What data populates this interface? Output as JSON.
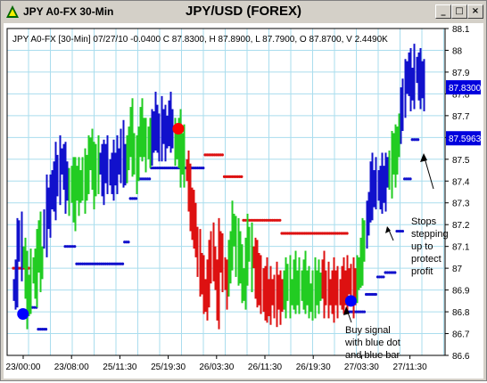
{
  "window": {
    "title": "JPY A0-FX 30-Min",
    "chart_title": "JPY/USD (FOREX)",
    "buttons": {
      "minimize": "_",
      "maximize": "□",
      "close": "×"
    }
  },
  "info_line": "JPY A0-FX [30-Min] 07/27/10  -0.0400 C 87.8300, H 87.8900, L 87.7900, O 87.8700, V 2.4490K",
  "annotations": {
    "stops": [
      "Stops",
      "stepping",
      "up to",
      "protect",
      "profit"
    ],
    "buy": [
      "Buy signal",
      "with blue dot",
      "and blue bar"
    ]
  },
  "colors": {
    "up": "#22cc22",
    "down": "#dd1111",
    "blue": "#1111cc",
    "grid": "#aaddee",
    "label_bg": "#0000dd"
  },
  "chart_data": {
    "type": "ohlc",
    "title": "JPY/USD (FOREX)",
    "ylim": [
      86.6,
      88.1
    ],
    "y_ticks": [
      "88.1",
      "88",
      "87.9",
      "87.8",
      "87.7",
      "87.6",
      "87.5",
      "87.4",
      "87.3",
      "87.2",
      "87.1",
      "87",
      "86.9",
      "86.8",
      "86.7",
      "86.6"
    ],
    "x_ticks": [
      "23/00:00",
      "23/08:00",
      "25/11:30",
      "25/19:30",
      "26/03:30",
      "26/11:30",
      "26/19:30",
      "27/03:30",
      "27/11:30"
    ],
    "price_labels": [
      "87.8300",
      "87.5963"
    ],
    "last_bar": {
      "date": "07/27/10",
      "change": -0.04,
      "close": 87.83,
      "high": 87.89,
      "low": 87.79,
      "open": 87.87,
      "volume": "2.4490K"
    },
    "bar_segments": [
      {
        "color": "blue",
        "start": 0,
        "prices": [
          86.9,
          86.95,
          87.1,
          87.15,
          87.05
        ]
      },
      {
        "color": "green",
        "start": 5,
        "prices": [
          87.05,
          86.95,
          86.85,
          86.9,
          86.98,
          87.0,
          86.95,
          87.05,
          87.15,
          87.0,
          87.05
        ]
      },
      {
        "color": "blue",
        "start": 16,
        "prices": [
          87.18,
          87.3,
          87.25,
          87.32,
          87.4,
          87.35,
          87.45,
          87.4,
          87.5,
          87.48,
          87.45,
          87.38,
          87.42
        ]
      },
      {
        "color": "green",
        "start": 29,
        "prices": [
          87.35,
          87.42,
          87.3,
          87.38,
          87.4,
          87.35,
          87.4,
          87.42,
          87.38,
          87.45,
          87.5,
          87.55,
          87.45,
          87.4,
          87.5,
          87.45
        ]
      },
      {
        "color": "blue",
        "start": 45,
        "prices": [
          87.48,
          87.42,
          87.46,
          87.5,
          87.45,
          87.43,
          87.44,
          87.46,
          87.45,
          87.5,
          87.48,
          87.55,
          87.5,
          87.45
        ]
      },
      {
        "color": "green",
        "start": 59,
        "prices": [
          87.5,
          87.6,
          87.65,
          87.55,
          87.5,
          87.45,
          87.6,
          87.65,
          87.62,
          87.58,
          87.55,
          87.6,
          87.55
        ]
      },
      {
        "color": "blue",
        "start": 72,
        "prices": [
          87.6,
          87.65,
          87.7,
          87.58,
          87.62,
          87.66,
          87.64,
          87.6,
          87.65,
          87.68,
          87.66,
          87.62
        ]
      },
      {
        "color": "green",
        "start": 84,
        "prices": [
          87.58,
          87.55,
          87.6,
          87.5,
          87.55,
          87.48
        ]
      },
      {
        "color": "red",
        "start": 90,
        "prices": [
          87.45,
          87.35,
          87.3,
          87.2,
          87.25,
          87.1,
          87.05,
          87.0,
          86.95,
          86.9,
          86.85,
          86.95,
          87.0,
          87.1,
          87.05,
          86.95,
          86.85,
          87.1,
          87.05,
          87.0,
          86.95,
          86.9
        ]
      },
      {
        "color": "green",
        "start": 112,
        "prices": [
          87.0,
          87.1,
          87.2,
          87.15,
          87.05,
          87.1,
          87.0,
          86.95,
          86.9,
          87.05,
          87.12,
          87.1,
          87.0
        ]
      },
      {
        "color": "red",
        "start": 125,
        "prices": [
          87.05,
          86.95,
          87.0,
          86.9,
          86.95,
          86.85,
          86.92,
          86.88,
          86.85,
          86.9,
          86.88,
          86.86,
          86.9,
          86.88,
          86.85,
          86.9
        ]
      },
      {
        "color": "green",
        "start": 141,
        "prices": [
          86.9,
          86.92,
          86.95,
          86.88,
          86.9,
          86.95,
          86.92,
          86.9,
          86.94,
          86.9,
          86.95,
          86.92,
          86.9,
          86.88,
          86.85,
          86.9,
          86.92,
          86.9,
          86.93,
          86.9
        ]
      },
      {
        "color": "red",
        "start": 161,
        "prices": [
          86.95,
          86.9,
          86.92,
          86.88,
          86.9,
          86.88,
          86.92,
          86.9,
          86.88,
          86.9,
          86.92,
          86.92,
          86.9,
          86.95,
          86.93,
          86.92,
          86.9,
          86.93
        ]
      },
      {
        "color": "green",
        "start": 179,
        "prices": [
          86.95,
          87.0,
          87.05,
          87.1,
          87.15
        ]
      },
      {
        "color": "blue",
        "start": 184,
        "prices": [
          87.2,
          87.3,
          87.4,
          87.35,
          87.38,
          87.4,
          87.36,
          87.38,
          87.4,
          87.37,
          87.42,
          87.46
        ]
      },
      {
        "color": "green",
        "start": 196,
        "prices": [
          87.45,
          87.5,
          87.55,
          87.48,
          87.6,
          87.62
        ]
      },
      {
        "color": "blue",
        "start": 202,
        "prices": [
          87.7,
          87.8,
          87.85,
          87.9,
          87.88,
          87.85,
          87.84,
          87.92,
          87.9,
          87.86,
          87.88,
          87.85,
          87.83
        ]
      }
    ],
    "stop_segments": [
      {
        "color": "red",
        "from": 0,
        "to": 9,
        "value": 87.0
      },
      {
        "color": "blue",
        "from": 9,
        "to": 13,
        "value": 86.82
      },
      {
        "color": "blue",
        "from": 13,
        "to": 18,
        "value": 86.72
      },
      {
        "color": "blue",
        "from": 27,
        "to": 33,
        "value": 87.1
      },
      {
        "color": "blue",
        "from": 33,
        "to": 58,
        "value": 87.02
      },
      {
        "color": "blue",
        "from": 58,
        "to": 61,
        "value": 87.12
      },
      {
        "color": "blue",
        "from": 61,
        "to": 65,
        "value": 87.32
      },
      {
        "color": "blue",
        "from": 65,
        "to": 72,
        "value": 87.41
      },
      {
        "color": "blue",
        "from": 72,
        "to": 100,
        "value": 87.46
      },
      {
        "color": "red",
        "from": 100,
        "to": 110,
        "value": 87.52
      },
      {
        "color": "red",
        "from": 110,
        "to": 120,
        "value": 87.42
      },
      {
        "color": "red",
        "from": 120,
        "to": 140,
        "value": 87.22
      },
      {
        "color": "red",
        "from": 140,
        "to": 175,
        "value": 87.16
      },
      {
        "color": "blue",
        "from": 175,
        "to": 184,
        "value": 86.8
      },
      {
        "color": "blue",
        "from": 184,
        "to": 190,
        "value": 86.88
      },
      {
        "color": "blue",
        "from": 190,
        "to": 194,
        "value": 86.96
      },
      {
        "color": "blue",
        "from": 194,
        "to": 200,
        "value": 86.98
      },
      {
        "color": "blue",
        "from": 200,
        "to": 204,
        "value": 87.17
      },
      {
        "color": "blue",
        "from": 204,
        "to": 208,
        "value": 87.41
      },
      {
        "color": "blue",
        "from": 208,
        "to": 212,
        "value": 87.59
      }
    ],
    "signal_dots": [
      {
        "color": "blue",
        "bar": 5,
        "value": 86.79
      },
      {
        "color": "red",
        "bar": 86,
        "value": 87.64
      },
      {
        "color": "blue",
        "bar": 176,
        "value": 86.85
      }
    ]
  }
}
